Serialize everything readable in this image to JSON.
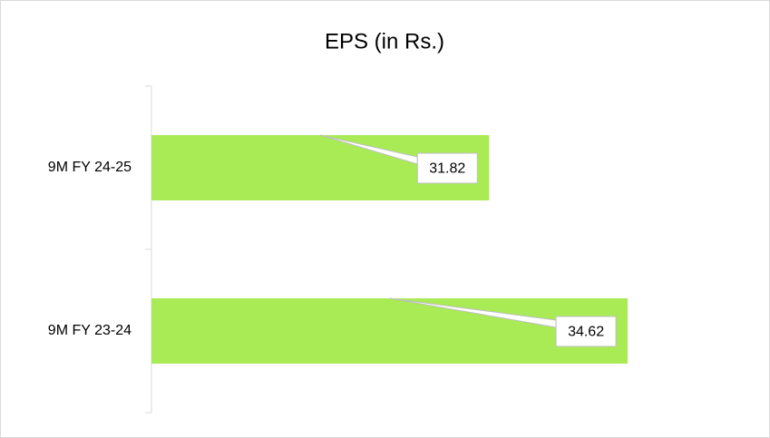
{
  "chart_data": {
    "type": "barh",
    "title": "EPS (in Rs.)",
    "categories": [
      "9M FY 24-25",
      "9M FY 23-24"
    ],
    "values": [
      31.82,
      34.62
    ],
    "color": "#a9eb55",
    "xlim": [
      25,
      37
    ]
  }
}
